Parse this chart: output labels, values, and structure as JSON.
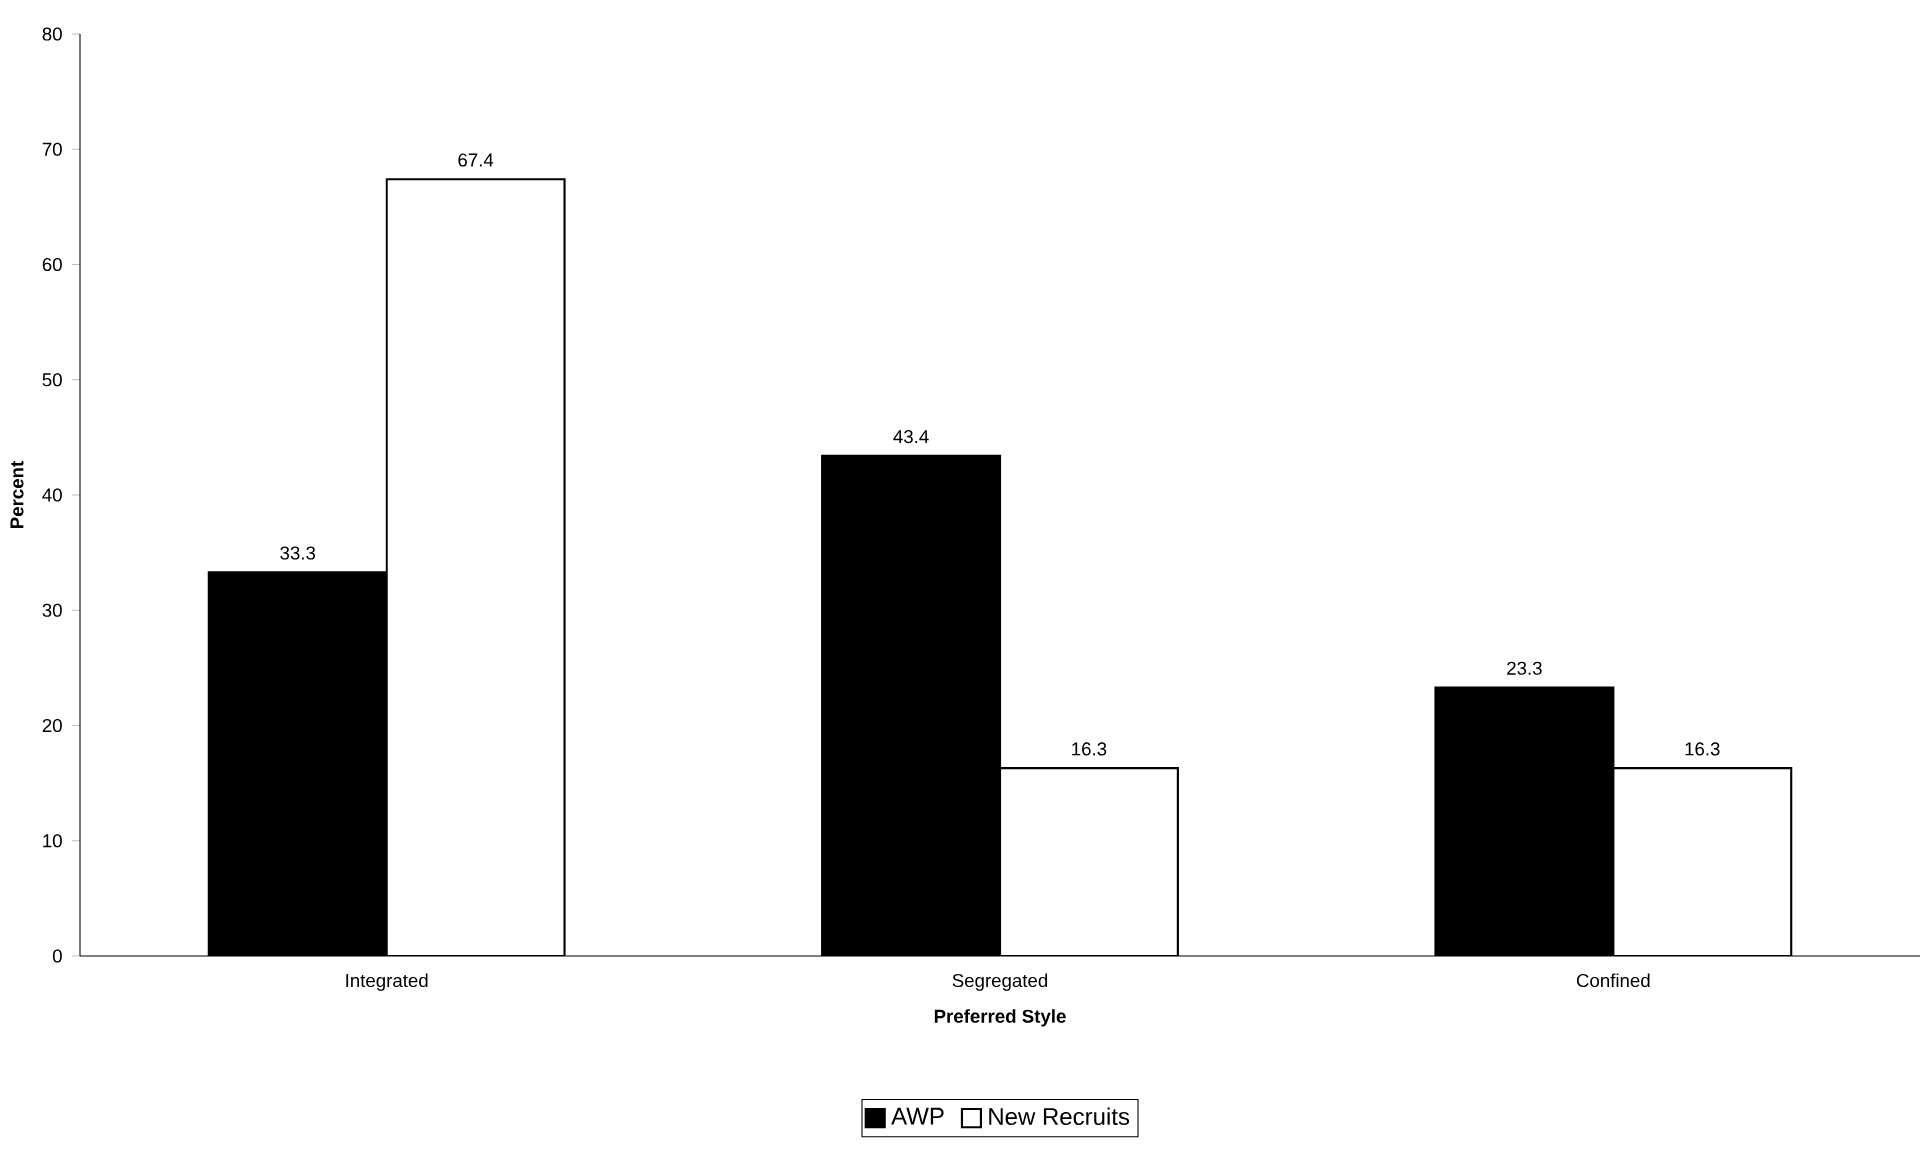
{
  "chart_data": {
    "type": "bar",
    "xlabel": "Preferred Style",
    "ylabel": "Percent",
    "categories": [
      "Integrated",
      "Segregated",
      "Confined"
    ],
    "series": [
      {
        "name": "AWP",
        "color": "#000000",
        "values": [
          33.3,
          43.4,
          23.3
        ]
      },
      {
        "name": "New Recruits",
        "color": "#ffffff",
        "values": [
          67.4,
          16.3,
          16.3
        ]
      }
    ],
    "ylim": [
      0,
      80
    ],
    "yticks": [
      0,
      10,
      20,
      30,
      40,
      50,
      60,
      70,
      80
    ],
    "data_labels": true,
    "legend": "bottom"
  }
}
